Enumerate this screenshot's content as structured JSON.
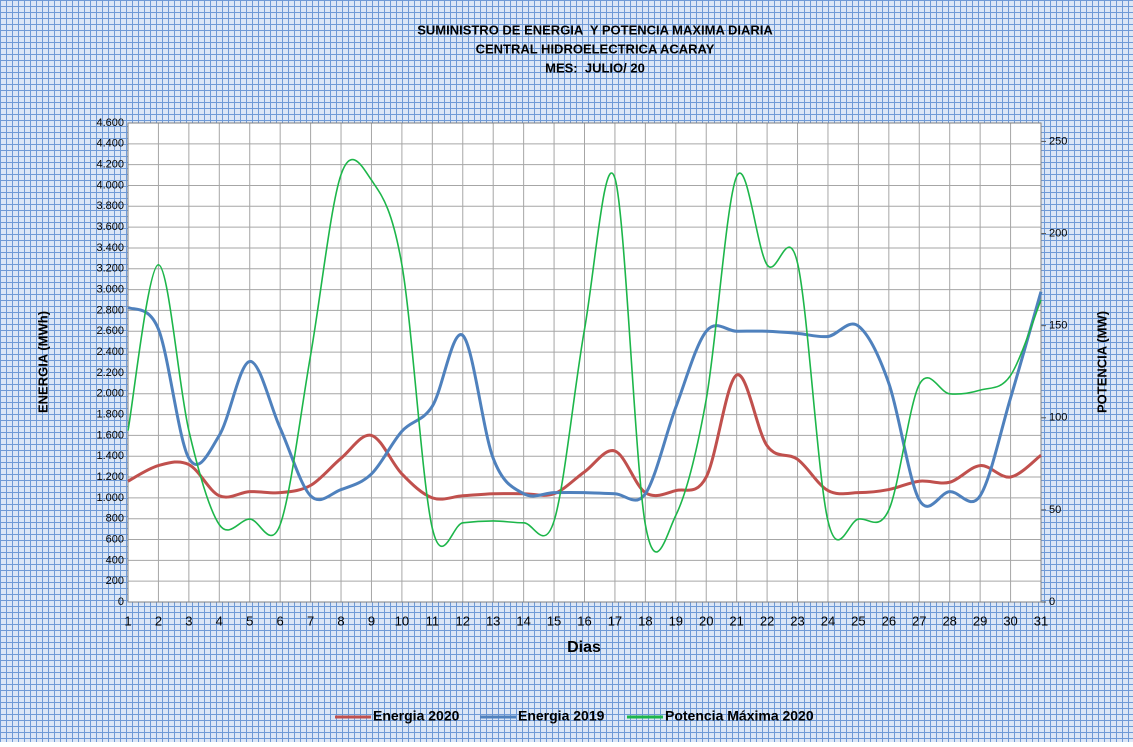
{
  "chart_data": {
    "type": "line",
    "title": [
      "SUMINISTRO DE ENERGIA  Y POTENCIA MAXIMA DIARIA",
      "CENTRAL HIDROELECTRICA ACARAY",
      "MES:  JULIO/ 20"
    ],
    "x_label": "Dias",
    "y_label": "ENERGIA (MWh)",
    "y2_label": "POTENCIA (MW)",
    "categories": [
      "1",
      "2",
      "3",
      "4",
      "5",
      "6",
      "7",
      "8",
      "9",
      "10",
      "11",
      "12",
      "13",
      "14",
      "15",
      "16",
      "17",
      "18",
      "19",
      "20",
      "21",
      "22",
      "23",
      "24",
      "25",
      "26",
      "27",
      "28",
      "29",
      "30",
      "31"
    ],
    "series": [
      {
        "name": "Energia 2020",
        "color": "#c0504d",
        "width": 3,
        "values": [
          1160,
          1310,
          1320,
          1020,
          1060,
          1050,
          1120,
          1380,
          1600,
          1230,
          1000,
          1020,
          1040,
          1040,
          1040,
          1250,
          1450,
          1050,
          1070,
          1200,
          2180,
          1500,
          1370,
          1070,
          1050,
          1080,
          1160,
          1150,
          1310,
          1200,
          1410
        ]
      },
      {
        "name": "Energia 2019",
        "color": "#4f81bd",
        "width": 3,
        "values": [
          2830,
          2620,
          1380,
          1600,
          2310,
          1670,
          1020,
          1080,
          1230,
          1640,
          1880,
          2560,
          1380,
          1040,
          1050,
          1050,
          1040,
          1040,
          1870,
          2600,
          2600,
          2600,
          2580,
          2550,
          2650,
          2100,
          980,
          1060,
          1020,
          1960,
          2980
        ]
      },
      {
        "name": "Potencia Máxima 2020",
        "color": "#1db64a",
        "width": 1.6,
        "axis": "y2",
        "values": [
          93,
          183,
          93,
          42,
          45,
          42,
          134,
          232,
          229,
          183,
          40,
          43,
          44,
          43,
          44,
          148,
          230,
          42,
          47,
          110,
          231,
          183,
          184,
          44,
          45,
          50,
          118,
          113,
          115,
          123,
          164
        ]
      }
    ],
    "ylim": [
      0,
      4600
    ],
    "yticks": [
      0,
      200,
      400,
      600,
      800,
      {
        "value": 1000,
        "label": "1.000"
      },
      {
        "value": 1200,
        "label": "1.200"
      },
      {
        "value": 1400,
        "label": "1.400"
      },
      {
        "value": 1600,
        "label": "1.600"
      },
      {
        "value": 1800,
        "label": "1.800"
      },
      {
        "value": 2000,
        "label": "2.000"
      },
      {
        "value": 2200,
        "label": "2.200"
      },
      {
        "value": 2400,
        "label": "2.400"
      },
      {
        "value": 2600,
        "label": "2.600"
      },
      {
        "value": 2800,
        "label": "2.800"
      },
      {
        "value": 3000,
        "label": "3.000"
      },
      {
        "value": 3200,
        "label": "3.200"
      },
      {
        "value": 3400,
        "label": "3.400"
      },
      {
        "value": 3600,
        "label": "3.600"
      },
      {
        "value": 3800,
        "label": "3.800"
      },
      {
        "value": 4000,
        "label": "4.000"
      },
      {
        "value": 4200,
        "label": "4.200"
      },
      {
        "value": 4400,
        "label": "4.400"
      },
      {
        "value": 4600,
        "label": "4.600"
      }
    ],
    "y2lim": [
      0,
      260
    ],
    "y2ticks": [
      0,
      50,
      100,
      150,
      200,
      250
    ],
    "grid": true,
    "legend": "bottom"
  }
}
